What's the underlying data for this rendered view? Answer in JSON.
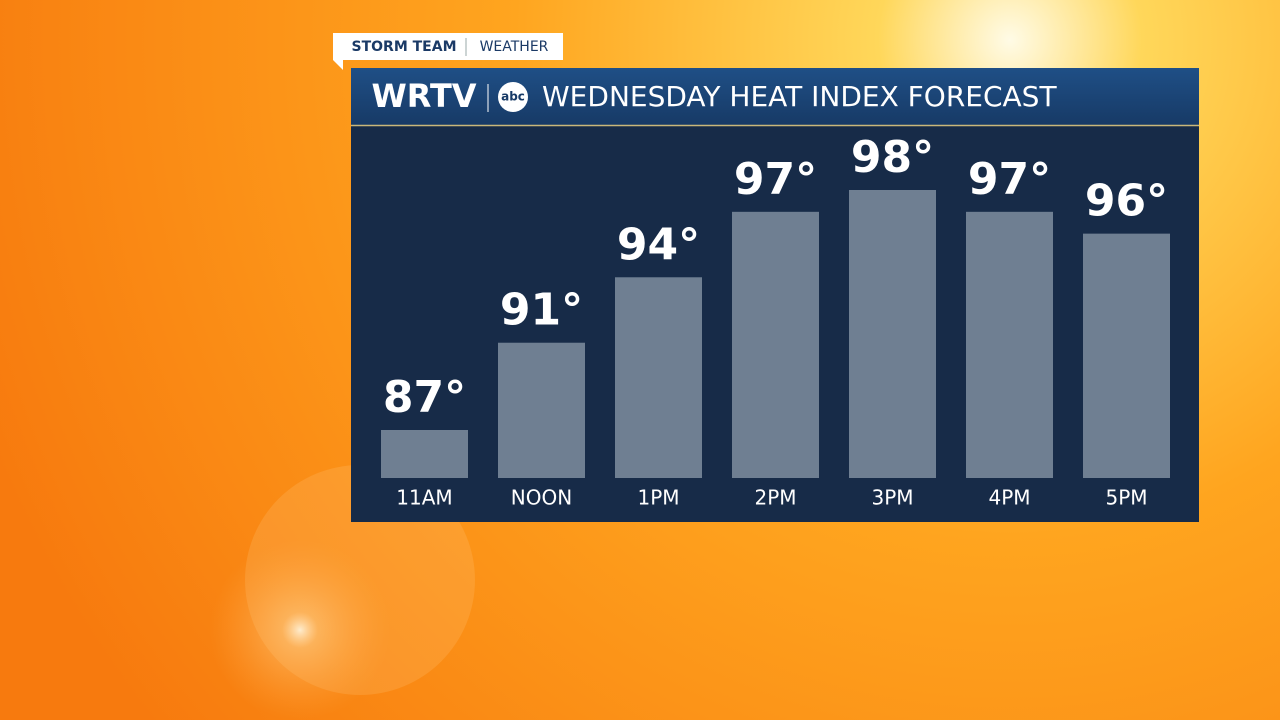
{
  "header": {
    "tag": "STORM TEAM",
    "tag_section": "WEATHER",
    "station": "WRTV",
    "network": "abc"
  },
  "chart_data": {
    "type": "bar",
    "title": "WEDNESDAY HEAT INDEX FORECAST",
    "categories": [
      "11AM",
      "NOON",
      "1PM",
      "2PM",
      "3PM",
      "4PM",
      "5PM"
    ],
    "values": [
      87,
      91,
      94,
      97,
      98,
      97,
      96
    ],
    "value_labels": [
      "87°",
      "91°",
      "94°",
      "97°",
      "98°",
      "97°",
      "96°"
    ],
    "color": "#6f7f92"
  }
}
